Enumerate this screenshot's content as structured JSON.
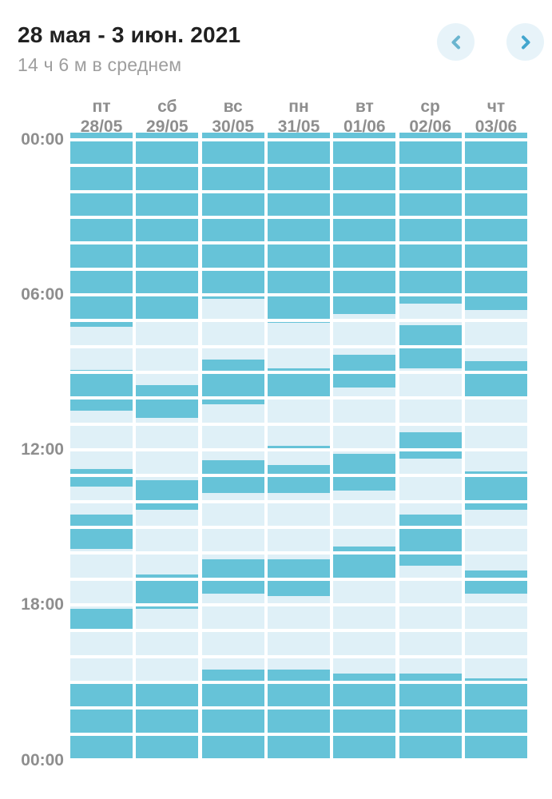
{
  "header": {
    "title": "28 мая - 3 июн. 2021",
    "subtitle": "14 ч 6 м в среднем",
    "prev_icon": "chevron-left",
    "next_icon": "chevron-right"
  },
  "chart_data": {
    "type": "heatmap",
    "title": "28 мая - 3 июн. 2021",
    "subtitle_average": "14 ч 6 м в среднем",
    "y_axis": {
      "tick_labels": [
        "00:00",
        "06:00",
        "12:00",
        "18:00",
        "00:00"
      ],
      "hours_range": [
        0,
        24
      ],
      "tick_interval_hours": 6,
      "grid": "hourly-white-lines"
    },
    "legend_position": "none",
    "columns": [
      {
        "day": "пт",
        "date": "28/05",
        "intervals": [
          [
            "00:00",
            "07:15"
          ],
          [
            "08:55",
            "10:30"
          ],
          [
            "12:45",
            "13:25"
          ],
          [
            "14:30",
            "15:50"
          ],
          [
            "18:10",
            "19:00"
          ],
          [
            "21:00",
            "24:00"
          ]
        ]
      },
      {
        "day": "сб",
        "date": "29/05",
        "intervals": [
          [
            "00:00",
            "07:00"
          ],
          [
            "09:30",
            "10:45"
          ],
          [
            "13:10",
            "14:20"
          ],
          [
            "16:50",
            "18:10"
          ],
          [
            "21:00",
            "24:00"
          ]
        ]
      },
      {
        "day": "вс",
        "date": "30/05",
        "intervals": [
          [
            "00:00",
            "06:10"
          ],
          [
            "08:30",
            "10:15"
          ],
          [
            "12:25",
            "13:40"
          ],
          [
            "16:15",
            "17:35"
          ],
          [
            "20:30",
            "24:00"
          ]
        ]
      },
      {
        "day": "пн",
        "date": "31/05",
        "intervals": [
          [
            "00:00",
            "07:05"
          ],
          [
            "08:50",
            "10:00"
          ],
          [
            "11:50",
            "12:00"
          ],
          [
            "12:35",
            "13:40"
          ],
          [
            "16:15",
            "17:40"
          ],
          [
            "20:30",
            "24:00"
          ]
        ]
      },
      {
        "day": "вт",
        "date": "01/06",
        "intervals": [
          [
            "00:00",
            "06:45"
          ],
          [
            "08:20",
            "09:35"
          ],
          [
            "12:10",
            "13:35"
          ],
          [
            "15:45",
            "17:00"
          ],
          [
            "20:40",
            "24:00"
          ]
        ]
      },
      {
        "day": "ср",
        "date": "02/06",
        "intervals": [
          [
            "00:00",
            "06:20"
          ],
          [
            "07:10",
            "08:50"
          ],
          [
            "11:20",
            "12:20"
          ],
          [
            "14:30",
            "16:30"
          ],
          [
            "20:40",
            "24:00"
          ]
        ]
      },
      {
        "day": "чт",
        "date": "03/06",
        "intervals": [
          [
            "00:00",
            "06:35"
          ],
          [
            "08:35",
            "10:00"
          ],
          [
            "12:50",
            "14:20"
          ],
          [
            "16:40",
            "17:35"
          ],
          [
            "20:50",
            "24:00"
          ]
        ]
      }
    ],
    "colors": {
      "active": "#66c3d8",
      "inactive": "#dff0f7",
      "grid": "#ffffff",
      "axis_text": "#8e8e8e",
      "title_text": "#212121",
      "subtitle_text": "#9e9e9e",
      "nav_circle": "#e7f3f9",
      "nav_chevron_left": "#6ab5cf",
      "nav_chevron_right": "#42a6ce"
    }
  }
}
